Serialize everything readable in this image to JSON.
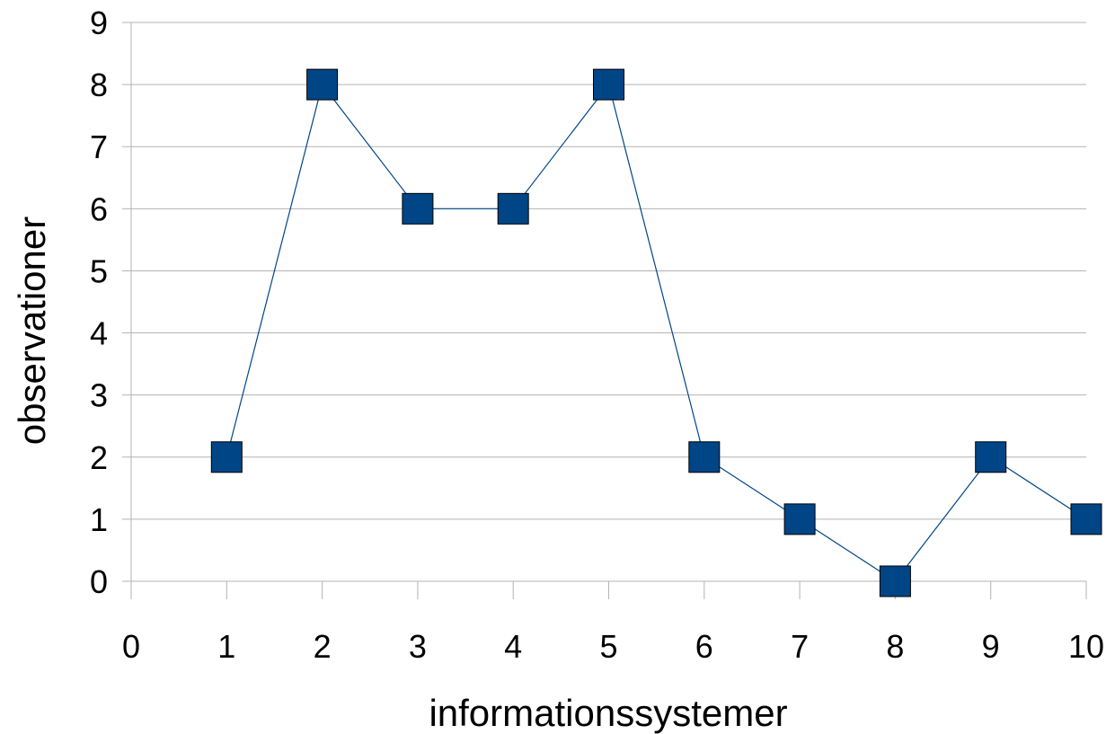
{
  "chart_data": {
    "type": "line",
    "title": "",
    "xlabel": "informationssystemer",
    "ylabel": "observationer",
    "xlim": [
      0,
      10
    ],
    "ylim": [
      0,
      9
    ],
    "x_ticks": [
      "0",
      "1",
      "2",
      "3",
      "4",
      "5",
      "6",
      "7",
      "8",
      "9",
      "10"
    ],
    "y_ticks": [
      "0",
      "1",
      "2",
      "3",
      "4",
      "5",
      "6",
      "7",
      "8",
      "9"
    ],
    "grid": {
      "horizontal": true,
      "vertical": false
    },
    "legend": "none",
    "marker": "square",
    "series": [
      {
        "x": [
          1,
          2,
          3,
          4,
          5,
          6,
          7,
          8,
          9,
          10
        ],
        "values": [
          2,
          8,
          6,
          6,
          8,
          2,
          1,
          0,
          2,
          1
        ],
        "color": "#004586"
      }
    ]
  }
}
